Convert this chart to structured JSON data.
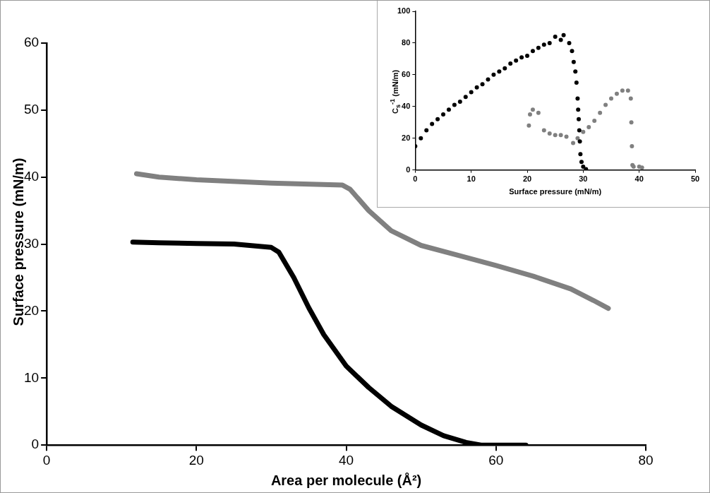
{
  "chart_data": [
    {
      "type": "line",
      "xlabel": "Area per molecule (Å²)",
      "ylabel": "Surface pressure (mN/m)",
      "xlim": [
        0,
        80
      ],
      "ylim": [
        0,
        60
      ],
      "xticks": [
        0,
        20,
        40,
        60,
        80
      ],
      "yticks": [
        0,
        10,
        20,
        30,
        40,
        50,
        60
      ],
      "grid": false,
      "legend": false,
      "marker": "none",
      "series": [
        {
          "color": "#000000",
          "x": [
            11.5,
            15,
            20,
            25,
            30,
            31,
            33,
            35,
            37,
            40,
            43,
            46,
            50,
            53,
            56,
            58,
            60,
            64
          ],
          "values": [
            30.3,
            30.2,
            30.1,
            30.0,
            29.5,
            28.8,
            25,
            20.5,
            16.5,
            11.8,
            8.6,
            5.8,
            3,
            1.4,
            0.4,
            0,
            0,
            0
          ]
        },
        {
          "color": "#808080",
          "x": [
            12,
            15,
            20,
            30,
            39.5,
            40.5,
            43,
            46,
            50,
            55,
            60,
            65,
            70,
            73,
            75
          ],
          "values": [
            40.5,
            40,
            39.6,
            39.1,
            38.8,
            38.2,
            35,
            32,
            29.8,
            28.3,
            26.8,
            25.2,
            23.3,
            21.6,
            20.4
          ]
        }
      ]
    },
    {
      "type": "scatter",
      "xlabel": "Surface pressure (mN/m)",
      "ylabel": "C$_{s}$$^{-1}$ (mN/m)",
      "xlim": [
        0,
        50
      ],
      "ylim": [
        0,
        100
      ],
      "xticks": [
        0,
        10,
        20,
        30,
        40,
        50
      ],
      "yticks": [
        0,
        20,
        40,
        60,
        80,
        100
      ],
      "grid": false,
      "legend": false,
      "marker": "circle",
      "series": [
        {
          "color": "#000000",
          "x": [
            0,
            1,
            2,
            3,
            4,
            5,
            6,
            7,
            8,
            9,
            10,
            11,
            12,
            13,
            14,
            15,
            16,
            17,
            18,
            19,
            20,
            21,
            22,
            23,
            24,
            25,
            26,
            26.5,
            27.5,
            28,
            28.3,
            28.6,
            28.8,
            29,
            29.1,
            29.2,
            29.3,
            29.4,
            29.5,
            29.7,
            30,
            30.5
          ],
          "values": [
            15,
            20,
            25,
            29,
            32,
            35,
            38,
            41,
            43,
            46,
            49,
            52,
            54,
            57,
            60,
            62,
            64,
            67,
            69,
            71,
            72,
            75,
            77,
            79,
            80,
            84,
            82,
            85,
            80,
            75,
            68,
            62,
            55,
            45,
            38,
            32,
            25,
            18,
            10,
            5,
            2,
            0.5
          ]
        },
        {
          "color": "#808080",
          "x": [
            20.3,
            20.5,
            21,
            22,
            23,
            24,
            25,
            26,
            27,
            28.2,
            29,
            30,
            31,
            32,
            33,
            34,
            35,
            36,
            37,
            38,
            38.5,
            38.6,
            38.7,
            38.8,
            39,
            40,
            40.5
          ],
          "values": [
            28,
            35,
            38,
            36,
            25,
            23,
            22,
            22,
            21,
            17,
            20,
            24,
            27,
            31,
            36,
            41,
            45,
            48,
            50,
            50,
            45,
            30,
            15,
            3,
            2,
            2,
            1.5
          ]
        }
      ]
    }
  ]
}
